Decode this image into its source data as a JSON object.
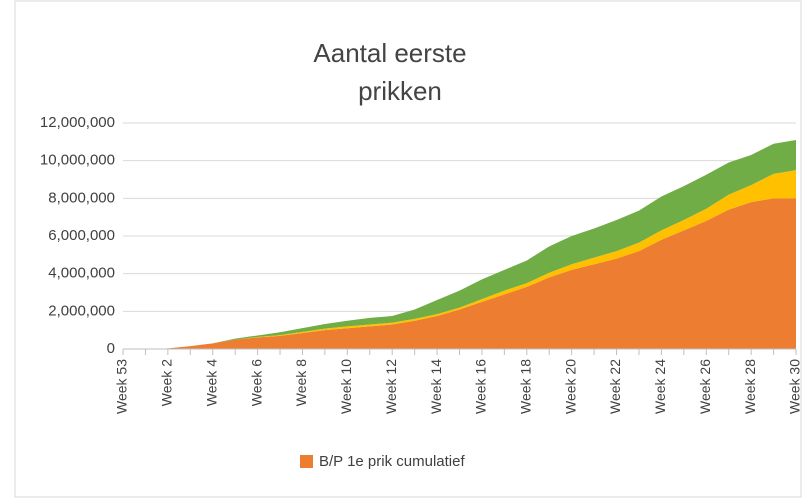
{
  "chart_data": {
    "type": "stacked_area",
    "title": [
      "Aantal  eerste",
      "prikken"
    ],
    "categories": [
      "Week 53",
      null,
      "Week 2",
      null,
      "Week 4",
      null,
      "Week 6",
      null,
      "Week 8",
      null,
      "Week 10",
      null,
      "Week 12",
      null,
      "Week 14",
      null,
      "Week 16",
      null,
      "Week 18",
      null,
      "Week 20",
      null,
      "Week 22",
      null,
      "Week 24",
      null,
      "Week 26",
      null,
      "Week 28",
      null,
      "Week 30"
    ],
    "series": [
      {
        "name": "B/P 1e prik cumulatief",
        "color": "#ed7d31",
        "values": [
          0,
          0,
          30000,
          150000,
          300000,
          500000,
          620000,
          700000,
          850000,
          1000000,
          1100000,
          1200000,
          1300000,
          1500000,
          1750000,
          2100000,
          2500000,
          2900000,
          3300000,
          3800000,
          4200000,
          4500000,
          4800000,
          5200000,
          5800000,
          6300000,
          6800000,
          7400000,
          7800000,
          8000000,
          8000000
        ]
      },
      {
        "color": "#ffc000",
        "values": [
          0,
          0,
          0,
          0,
          0,
          0,
          20000,
          40000,
          60000,
          80000,
          100000,
          100000,
          100000,
          100000,
          100000,
          100000,
          150000,
          200000,
          200000,
          250000,
          300000,
          350000,
          400000,
          450000,
          500000,
          550000,
          650000,
          800000,
          900000,
          1300000,
          1500000
        ]
      },
      {
        "color": "#70ad47",
        "values": [
          0,
          0,
          0,
          0,
          0,
          50000,
          80000,
          150000,
          200000,
          250000,
          300000,
          350000,
          350000,
          500000,
          750000,
          900000,
          1050000,
          1100000,
          1200000,
          1400000,
          1500000,
          1550000,
          1650000,
          1700000,
          1800000,
          1800000,
          1800000,
          1700000,
          1600000,
          1600000,
          1600000
        ]
      }
    ],
    "ylim": [
      0,
      12000000
    ],
    "yticks": [
      0,
      {
        "value": 2000000,
        "label": "2,000,000"
      },
      {
        "value": 4000000,
        "label": "4,000,000"
      },
      {
        "value": 6000000,
        "label": "6,000,000"
      },
      {
        "value": 8000000,
        "label": "8,000,000"
      },
      {
        "value": 10000000,
        "label": "10,000,000"
      },
      {
        "value": 12000000,
        "label": "12,000,000"
      }
    ],
    "grid": true,
    "legend": "bottom"
  }
}
